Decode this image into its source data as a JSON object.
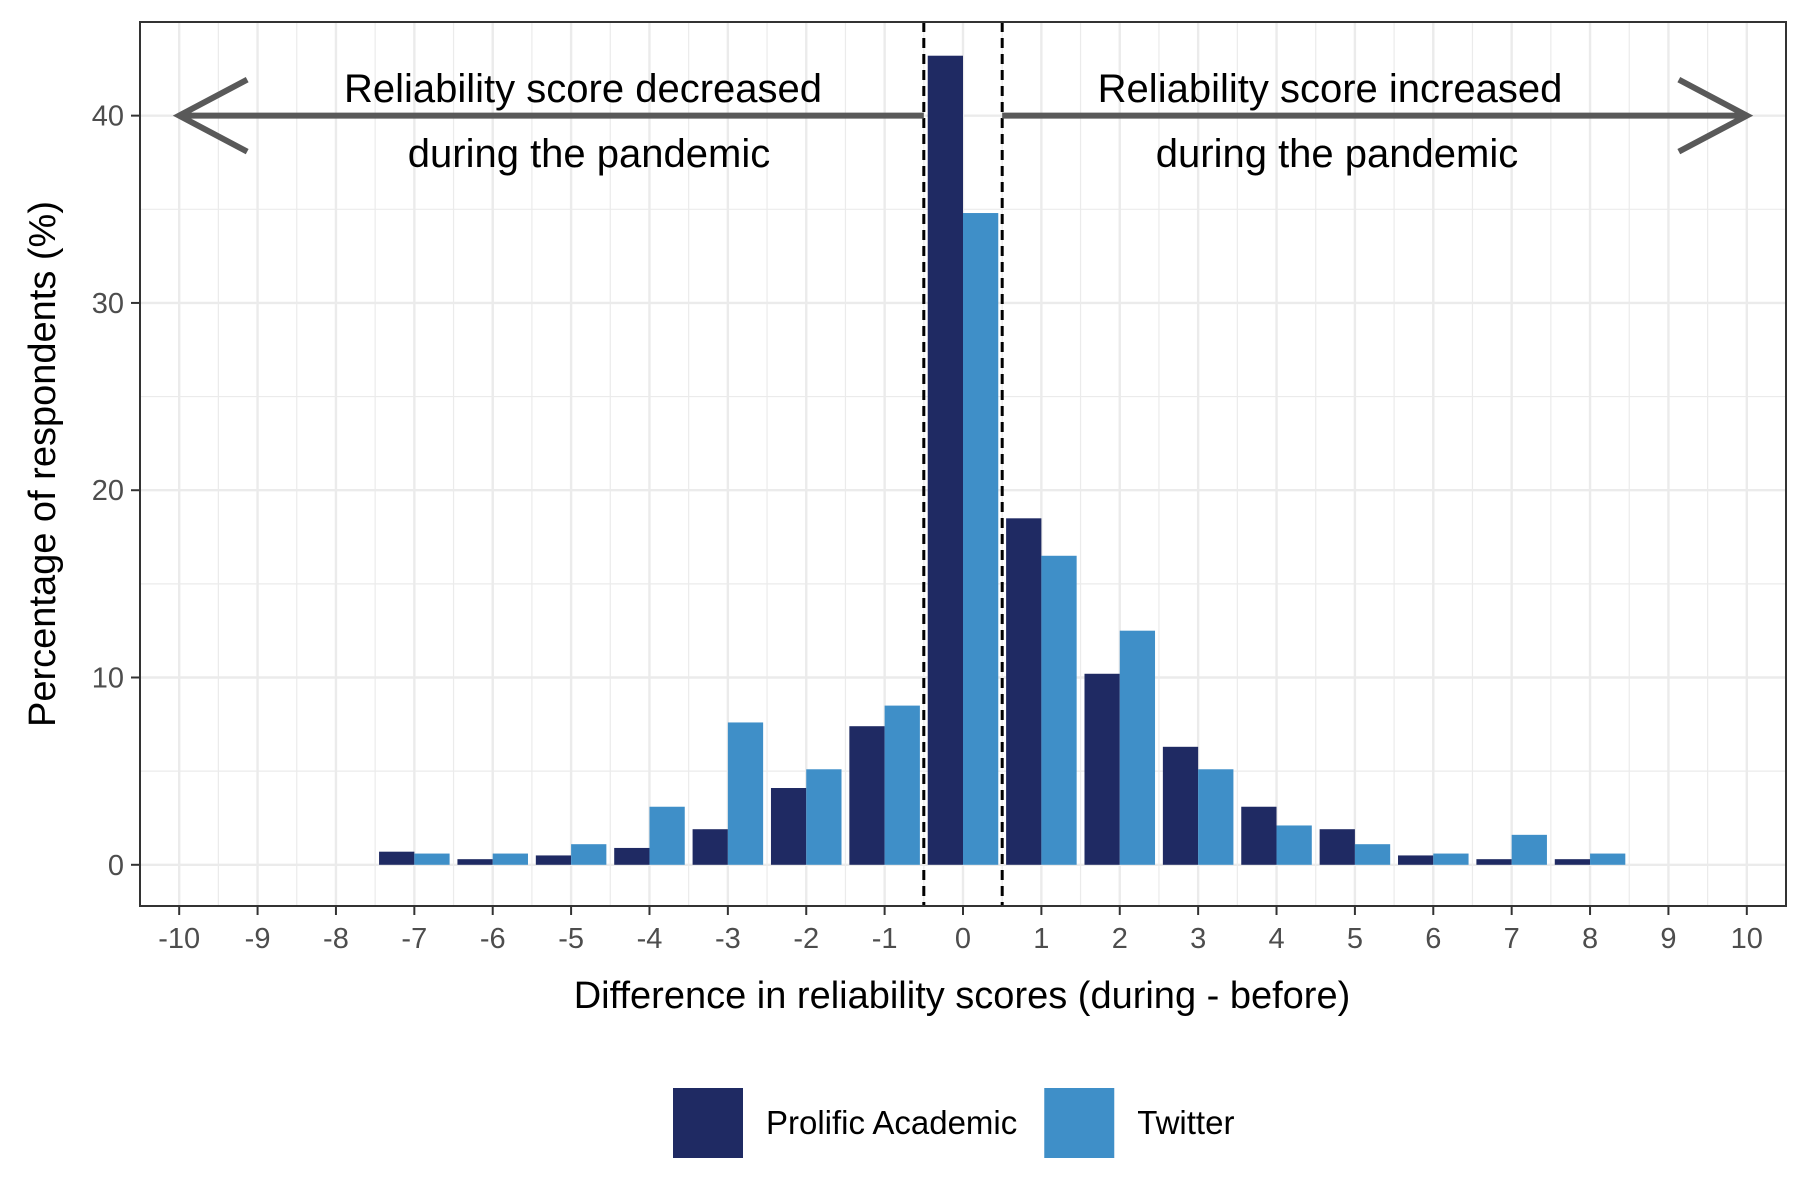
{
  "chart_data": {
    "type": "bar",
    "title": "",
    "xlabel": "Difference in reliability scores (during - before)",
    "ylabel": "Percentage of respondents (%)",
    "xlim": [
      -10.5,
      10.5
    ],
    "ylim": [
      -2.2,
      45
    ],
    "x_ticks": [
      -10,
      -9,
      -8,
      -7,
      -6,
      -5,
      -4,
      -3,
      -2,
      -1,
      0,
      1,
      2,
      3,
      4,
      5,
      6,
      7,
      8,
      9,
      10
    ],
    "x_tick_labels": [
      "-10",
      "-9",
      "-8",
      "-7",
      "-6",
      "-5",
      "-4",
      "-3",
      "-2",
      "-1",
      "0",
      "1",
      "2",
      "3",
      "4",
      "5",
      "6",
      "7",
      "8",
      "9",
      "10"
    ],
    "y_ticks": [
      0,
      10,
      20,
      30,
      40
    ],
    "y_tick_labels": [
      "0",
      "10",
      "20",
      "30",
      "40"
    ],
    "grid": true,
    "legend_position": "bottom",
    "x": [
      -7,
      -6,
      -5,
      -4,
      -3,
      -2,
      -1,
      0,
      1,
      2,
      3,
      4,
      5,
      6,
      7,
      8
    ],
    "series": [
      {
        "name": "Prolific Academic",
        "color": "#1f2a63",
        "values": [
          0.7,
          0.3,
          0.5,
          0.9,
          1.9,
          4.1,
          7.4,
          43.2,
          18.5,
          10.2,
          6.3,
          3.1,
          1.9,
          0.5,
          0.3,
          0.3
        ]
      },
      {
        "name": "Twitter",
        "color": "#3f8fc8",
        "values": [
          0.6,
          0.6,
          1.1,
          3.1,
          7.6,
          5.1,
          8.5,
          34.8,
          16.5,
          12.5,
          5.1,
          2.1,
          1.1,
          0.6,
          1.6,
          0.6
        ]
      }
    ],
    "reference_lines_x": [
      -0.5,
      0.5
    ],
    "annotations": [
      {
        "lines": [
          "Reliability score decreased",
          "during the pandemic"
        ],
        "arrow_direction": "left"
      },
      {
        "lines": [
          "Reliability score increased",
          "during the pandemic"
        ],
        "arrow_direction": "right"
      }
    ]
  }
}
